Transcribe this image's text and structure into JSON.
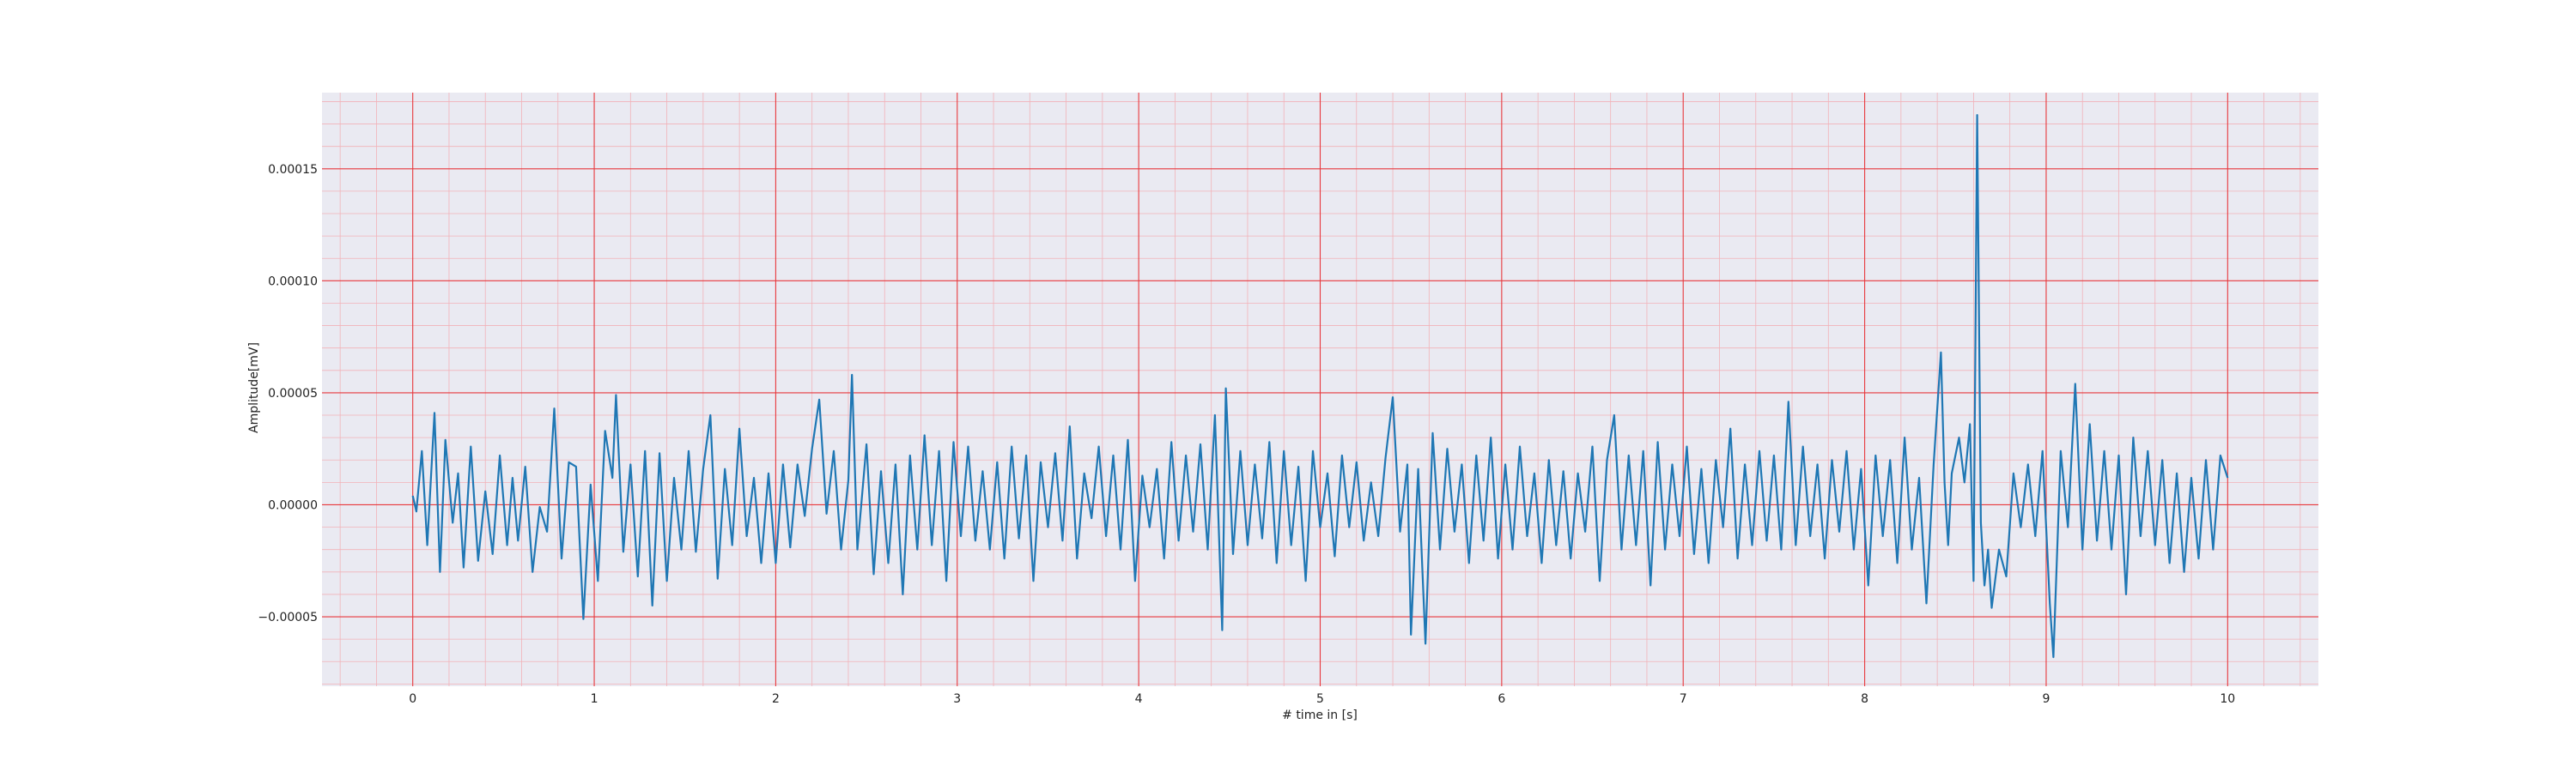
{
  "chart_data": {
    "type": "line",
    "title": "",
    "xlabel": "# time in [s]",
    "ylabel": "Amplitude[mV]",
    "xlim": [
      -0.5,
      10.5
    ],
    "ylim": [
      -8.1e-05,
      0.000184
    ],
    "xticks": [
      0,
      1,
      2,
      3,
      4,
      5,
      6,
      7,
      8,
      9,
      10
    ],
    "xtick_labels": [
      "0",
      "1",
      "2",
      "3",
      "4",
      "5",
      "6",
      "7",
      "8",
      "9",
      "10"
    ],
    "yticks": [
      -5e-05,
      0,
      5e-05,
      0.0001,
      0.00015
    ],
    "ytick_labels": [
      "−0.00005",
      "0.00000",
      "0.00005",
      "0.00010",
      "0.00015"
    ],
    "grid": "major red, minor light pink",
    "colors": {
      "plot_background": "#eaeaf2",
      "major_grid": "#e8383d",
      "minor_grid": "#f2b2b8",
      "line": "#1f77b4"
    },
    "series": [
      {
        "points": [
          [
            0.0,
            4e-06
          ],
          [
            0.02,
            -3e-06
          ],
          [
            0.05,
            2.4e-05
          ],
          [
            0.08,
            -1.8e-05
          ],
          [
            0.12,
            4.1e-05
          ],
          [
            0.15,
            -3e-05
          ],
          [
            0.18,
            2.9e-05
          ],
          [
            0.22,
            -8e-06
          ],
          [
            0.25,
            1.4e-05
          ],
          [
            0.28,
            -2.8e-05
          ],
          [
            0.32,
            2.6e-05
          ],
          [
            0.36,
            -2.5e-05
          ],
          [
            0.4,
            6e-06
          ],
          [
            0.44,
            -2.2e-05
          ],
          [
            0.48,
            2.2e-05
          ],
          [
            0.52,
            -1.8e-05
          ],
          [
            0.55,
            1.2e-05
          ],
          [
            0.58,
            -1.6e-05
          ],
          [
            0.62,
            1.7e-05
          ],
          [
            0.66,
            -3e-05
          ],
          [
            0.7,
            -1e-06
          ],
          [
            0.74,
            -1.2e-05
          ],
          [
            0.78,
            4.3e-05
          ],
          [
            0.82,
            -2.4e-05
          ],
          [
            0.86,
            1.9e-05
          ],
          [
            0.9,
            1.7e-05
          ],
          [
            0.94,
            -5.1e-05
          ],
          [
            0.98,
            9e-06
          ],
          [
            1.02,
            -3.4e-05
          ],
          [
            1.06,
            3.3e-05
          ],
          [
            1.1,
            1.2e-05
          ],
          [
            1.12,
            4.9e-05
          ],
          [
            1.16,
            -2.1e-05
          ],
          [
            1.2,
            1.8e-05
          ],
          [
            1.24,
            -3.2e-05
          ],
          [
            1.28,
            2.4e-05
          ],
          [
            1.32,
            -4.5e-05
          ],
          [
            1.36,
            2.3e-05
          ],
          [
            1.4,
            -3.4e-05
          ],
          [
            1.44,
            1.2e-05
          ],
          [
            1.48,
            -2e-05
          ],
          [
            1.52,
            2.4e-05
          ],
          [
            1.56,
            -2.1e-05
          ],
          [
            1.6,
            1.6e-05
          ],
          [
            1.64,
            4e-05
          ],
          [
            1.68,
            -3.3e-05
          ],
          [
            1.72,
            1.6e-05
          ],
          [
            1.76,
            -1.8e-05
          ],
          [
            1.8,
            3.4e-05
          ],
          [
            1.84,
            -1.4e-05
          ],
          [
            1.88,
            1.2e-05
          ],
          [
            1.92,
            -2.6e-05
          ],
          [
            1.96,
            1.4e-05
          ],
          [
            2.0,
            -2.6e-05
          ],
          [
            2.04,
            1.8e-05
          ],
          [
            2.08,
            -1.9e-05
          ],
          [
            2.12,
            1.8e-05
          ],
          [
            2.16,
            -5e-06
          ],
          [
            2.2,
            2.5e-05
          ],
          [
            2.24,
            4.7e-05
          ],
          [
            2.28,
            -4e-06
          ],
          [
            2.32,
            2.4e-05
          ],
          [
            2.36,
            -2e-05
          ],
          [
            2.4,
            1.1e-05
          ],
          [
            2.42,
            5.8e-05
          ],
          [
            2.45,
            -2e-05
          ],
          [
            2.5,
            2.7e-05
          ],
          [
            2.54,
            -3.1e-05
          ],
          [
            2.58,
            1.5e-05
          ],
          [
            2.62,
            -2.6e-05
          ],
          [
            2.66,
            1.8e-05
          ],
          [
            2.7,
            -4e-05
          ],
          [
            2.74,
            2.2e-05
          ],
          [
            2.78,
            -2e-05
          ],
          [
            2.82,
            3.1e-05
          ],
          [
            2.86,
            -1.8e-05
          ],
          [
            2.9,
            2.4e-05
          ],
          [
            2.94,
            -3.4e-05
          ],
          [
            2.98,
            2.8e-05
          ],
          [
            3.02,
            -1.4e-05
          ],
          [
            3.06,
            2.6e-05
          ],
          [
            3.1,
            -1.6e-05
          ],
          [
            3.14,
            1.5e-05
          ],
          [
            3.18,
            -2e-05
          ],
          [
            3.22,
            1.9e-05
          ],
          [
            3.26,
            -2.4e-05
          ],
          [
            3.3,
            2.6e-05
          ],
          [
            3.34,
            -1.5e-05
          ],
          [
            3.38,
            2.2e-05
          ],
          [
            3.42,
            -3.4e-05
          ],
          [
            3.46,
            1.9e-05
          ],
          [
            3.5,
            -1e-05
          ],
          [
            3.54,
            2.3e-05
          ],
          [
            3.58,
            -1.6e-05
          ],
          [
            3.62,
            3.5e-05
          ],
          [
            3.66,
            -2.4e-05
          ],
          [
            3.7,
            1.4e-05
          ],
          [
            3.74,
            -6e-06
          ],
          [
            3.78,
            2.6e-05
          ],
          [
            3.82,
            -1.4e-05
          ],
          [
            3.86,
            2.2e-05
          ],
          [
            3.9,
            -2e-05
          ],
          [
            3.94,
            2.9e-05
          ],
          [
            3.98,
            -3.4e-05
          ],
          [
            4.02,
            1.3e-05
          ],
          [
            4.06,
            -1e-05
          ],
          [
            4.1,
            1.6e-05
          ],
          [
            4.14,
            -2.4e-05
          ],
          [
            4.18,
            2.8e-05
          ],
          [
            4.22,
            -1.6e-05
          ],
          [
            4.26,
            2.2e-05
          ],
          [
            4.3,
            -1.2e-05
          ],
          [
            4.34,
            2.7e-05
          ],
          [
            4.38,
            -2e-05
          ],
          [
            4.42,
            4e-05
          ],
          [
            4.46,
            -5.6e-05
          ],
          [
            4.48,
            5.2e-05
          ],
          [
            4.52,
            -2.2e-05
          ],
          [
            4.56,
            2.4e-05
          ],
          [
            4.6,
            -1.8e-05
          ],
          [
            4.64,
            1.8e-05
          ],
          [
            4.68,
            -1.5e-05
          ],
          [
            4.72,
            2.8e-05
          ],
          [
            4.76,
            -2.6e-05
          ],
          [
            4.8,
            2.4e-05
          ],
          [
            4.84,
            -1.8e-05
          ],
          [
            4.88,
            1.7e-05
          ],
          [
            4.92,
            -3.4e-05
          ],
          [
            4.96,
            2.4e-05
          ],
          [
            5.0,
            -1e-05
          ],
          [
            5.04,
            1.4e-05
          ],
          [
            5.08,
            -2.3e-05
          ],
          [
            5.12,
            2.2e-05
          ],
          [
            5.16,
            -1e-05
          ],
          [
            5.2,
            1.9e-05
          ],
          [
            5.24,
            -1.6e-05
          ],
          [
            5.28,
            1e-05
          ],
          [
            5.32,
            -1.4e-05
          ],
          [
            5.36,
            2.1e-05
          ],
          [
            5.4,
            4.8e-05
          ],
          [
            5.44,
            -1.2e-05
          ],
          [
            5.48,
            1.8e-05
          ],
          [
            5.5,
            -5.8e-05
          ],
          [
            5.54,
            1.6e-05
          ],
          [
            5.58,
            -6.2e-05
          ],
          [
            5.62,
            3.2e-05
          ],
          [
            5.66,
            -2e-05
          ],
          [
            5.7,
            2.5e-05
          ],
          [
            5.74,
            -1.2e-05
          ],
          [
            5.78,
            1.8e-05
          ],
          [
            5.82,
            -2.6e-05
          ],
          [
            5.86,
            2.2e-05
          ],
          [
            5.9,
            -1.6e-05
          ],
          [
            5.94,
            3e-05
          ],
          [
            5.98,
            -2.4e-05
          ],
          [
            6.02,
            1.8e-05
          ],
          [
            6.06,
            -2e-05
          ],
          [
            6.1,
            2.6e-05
          ],
          [
            6.14,
            -1.4e-05
          ],
          [
            6.18,
            1.4e-05
          ],
          [
            6.22,
            -2.6e-05
          ],
          [
            6.26,
            2e-05
          ],
          [
            6.3,
            -1.8e-05
          ],
          [
            6.34,
            1.5e-05
          ],
          [
            6.38,
            -2.4e-05
          ],
          [
            6.42,
            1.4e-05
          ],
          [
            6.46,
            -1.2e-05
          ],
          [
            6.5,
            2.6e-05
          ],
          [
            6.54,
            -3.4e-05
          ],
          [
            6.58,
            2e-05
          ],
          [
            6.62,
            4e-05
          ],
          [
            6.66,
            -2e-05
          ],
          [
            6.7,
            2.2e-05
          ],
          [
            6.74,
            -1.8e-05
          ],
          [
            6.78,
            2.4e-05
          ],
          [
            6.82,
            -3.6e-05
          ],
          [
            6.86,
            2.8e-05
          ],
          [
            6.9,
            -2e-05
          ],
          [
            6.94,
            1.8e-05
          ],
          [
            6.98,
            -1.4e-05
          ],
          [
            7.02,
            2.6e-05
          ],
          [
            7.06,
            -2.2e-05
          ],
          [
            7.1,
            1.6e-05
          ],
          [
            7.14,
            -2.6e-05
          ],
          [
            7.18,
            2e-05
          ],
          [
            7.22,
            -1e-05
          ],
          [
            7.26,
            3.4e-05
          ],
          [
            7.3,
            -2.4e-05
          ],
          [
            7.34,
            1.8e-05
          ],
          [
            7.38,
            -1.8e-05
          ],
          [
            7.42,
            2.4e-05
          ],
          [
            7.46,
            -1.6e-05
          ],
          [
            7.5,
            2.2e-05
          ],
          [
            7.54,
            -2e-05
          ],
          [
            7.58,
            4.6e-05
          ],
          [
            7.62,
            -1.8e-05
          ],
          [
            7.66,
            2.6e-05
          ],
          [
            7.7,
            -1.4e-05
          ],
          [
            7.74,
            1.8e-05
          ],
          [
            7.78,
            -2.4e-05
          ],
          [
            7.82,
            2e-05
          ],
          [
            7.86,
            -1.2e-05
          ],
          [
            7.9,
            2.4e-05
          ],
          [
            7.94,
            -2e-05
          ],
          [
            7.98,
            1.6e-05
          ],
          [
            8.02,
            -3.6e-05
          ],
          [
            8.06,
            2.2e-05
          ],
          [
            8.1,
            -1.4e-05
          ],
          [
            8.14,
            2e-05
          ],
          [
            8.18,
            -2.6e-05
          ],
          [
            8.22,
            3e-05
          ],
          [
            8.26,
            -2e-05
          ],
          [
            8.3,
            1.2e-05
          ],
          [
            8.34,
            -4.4e-05
          ],
          [
            8.38,
            1.8e-05
          ],
          [
            8.42,
            6.8e-05
          ],
          [
            8.44,
            1e-05
          ],
          [
            8.46,
            -1.8e-05
          ],
          [
            8.48,
            1.4e-05
          ],
          [
            8.52,
            3e-05
          ],
          [
            8.55,
            1e-05
          ],
          [
            8.58,
            3.6e-05
          ],
          [
            8.6,
            -3.4e-05
          ],
          [
            8.62,
            0.000174
          ],
          [
            8.64,
            -8e-06
          ],
          [
            8.66,
            -3.6e-05
          ],
          [
            8.68,
            -2e-05
          ],
          [
            8.7,
            -4.6e-05
          ],
          [
            8.74,
            -2e-05
          ],
          [
            8.78,
            -3.2e-05
          ],
          [
            8.82,
            1.4e-05
          ],
          [
            8.86,
            -1e-05
          ],
          [
            8.9,
            1.8e-05
          ],
          [
            8.94,
            -1.4e-05
          ],
          [
            8.98,
            2.4e-05
          ],
          [
            9.02,
            -4.4e-05
          ],
          [
            9.04,
            -6.8e-05
          ],
          [
            9.08,
            2.4e-05
          ],
          [
            9.12,
            -1e-05
          ],
          [
            9.16,
            5.4e-05
          ],
          [
            9.2,
            -2e-05
          ],
          [
            9.24,
            3.6e-05
          ],
          [
            9.28,
            -1.6e-05
          ],
          [
            9.32,
            2.4e-05
          ],
          [
            9.36,
            -2e-05
          ],
          [
            9.4,
            2.2e-05
          ],
          [
            9.44,
            -4e-05
          ],
          [
            9.48,
            3e-05
          ],
          [
            9.52,
            -1.4e-05
          ],
          [
            9.56,
            2.4e-05
          ],
          [
            9.6,
            -1.8e-05
          ],
          [
            9.64,
            2e-05
          ],
          [
            9.68,
            -2.6e-05
          ],
          [
            9.72,
            1.4e-05
          ],
          [
            9.76,
            -3e-05
          ],
          [
            9.8,
            1.2e-05
          ],
          [
            9.84,
            -2.4e-05
          ],
          [
            9.88,
            2e-05
          ],
          [
            9.92,
            -2e-05
          ],
          [
            9.96,
            2.2e-05
          ],
          [
            10.0,
            1.2e-05
          ]
        ]
      }
    ]
  }
}
